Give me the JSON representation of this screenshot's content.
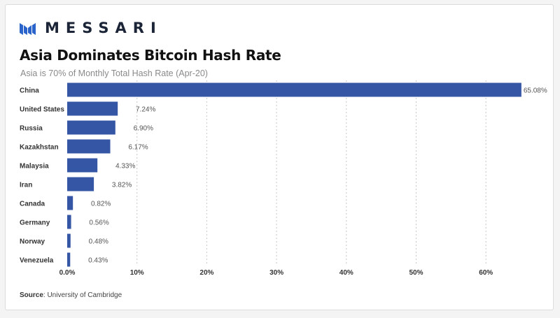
{
  "brand": {
    "name": "MESSARI",
    "logo_icon": "messari-m-logo-icon",
    "color": "#2a63c9"
  },
  "title": "Asia Dominates Bitcoin Hash Rate",
  "subtitle": "Asia is 70% of Monthly Total Hash Rate (Apr-20)",
  "source": {
    "label": "Source",
    "text": ": University of Cambridge"
  },
  "colors": {
    "bar": "#3556a4",
    "grid": "#c8c8c8",
    "axis_text": "#333333",
    "label_text": "#555555"
  },
  "chart_data": {
    "type": "bar",
    "orientation": "horizontal",
    "title": "Asia Dominates Bitcoin Hash Rate",
    "subtitle": "Asia is 70% of Monthly Total Hash Rate (Apr-20)",
    "categories": [
      "China",
      "United States",
      "Russia",
      "Kazakhstan",
      "Malaysia",
      "Iran",
      "Canada",
      "Germany",
      "Norway",
      "Venezuela"
    ],
    "values": [
      65.08,
      7.24,
      6.9,
      6.17,
      4.33,
      3.82,
      0.82,
      0.56,
      0.48,
      0.43
    ],
    "data_labels": [
      "65.08%",
      "7.24%",
      "6.90%",
      "6.17%",
      "4.33%",
      "3.82%",
      "0.82%",
      "0.56%",
      "0.48%",
      "0.43%"
    ],
    "x_ticks": [
      0,
      10,
      20,
      30,
      40,
      50,
      60
    ],
    "x_tick_labels": [
      "0.0%",
      "10%",
      "20%",
      "30%",
      "40%",
      "50%",
      "60%"
    ],
    "xlim": [
      0,
      65.08
    ],
    "grid": "vertical-dotted",
    "legend": "none"
  }
}
